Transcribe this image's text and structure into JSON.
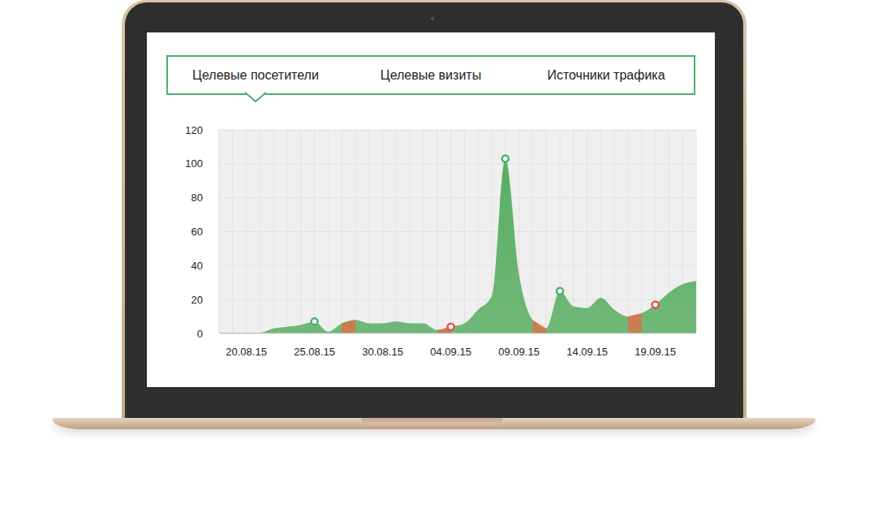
{
  "tabs": [
    "Целевые посетители",
    "Целевые визиты",
    "Источники трафика"
  ],
  "chart_data": {
    "type": "area",
    "categories": [
      null,
      null,
      "20.08.15",
      null,
      null,
      null,
      null,
      "25.08.15",
      null,
      null,
      null,
      null,
      "30.08.15",
      null,
      null,
      null,
      null,
      "04.09.15",
      null,
      null,
      null,
      null,
      "09.09.15",
      null,
      null,
      null,
      null,
      "14.09.15",
      null,
      null,
      null,
      null,
      "19.09.15",
      null,
      null,
      null
    ],
    "series": [
      {
        "type": "area",
        "color": "#5aae63",
        "values": [
          0.5,
          0.5,
          0.5,
          0.5,
          3,
          4,
          5,
          7,
          1,
          6,
          8,
          6,
          6,
          7,
          6,
          6,
          2,
          4,
          6,
          14,
          22,
          103,
          35,
          8,
          3,
          25,
          16,
          15,
          21,
          14,
          10,
          12,
          17,
          24,
          29,
          31
        ]
      },
      {
        "type": "area",
        "color": "#d2784c",
        "values": [
          null,
          null,
          null,
          null,
          null,
          null,
          null,
          null,
          null,
          6,
          8,
          null,
          null,
          null,
          null,
          null,
          2,
          4,
          null,
          null,
          null,
          null,
          null,
          8,
          3,
          null,
          null,
          null,
          null,
          null,
          10,
          12,
          null,
          null,
          null,
          null
        ]
      },
      {
        "type": "scatter",
        "color": "#4cb06c",
        "marker": "circle",
        "values": [
          null,
          null,
          null,
          null,
          null,
          null,
          null,
          7,
          null,
          null,
          null,
          null,
          null,
          null,
          null,
          null,
          null,
          null,
          null,
          null,
          null,
          103,
          null,
          null,
          null,
          25,
          null,
          null,
          null,
          null,
          null,
          null,
          null,
          null,
          null,
          null
        ]
      },
      {
        "type": "scatter",
        "color": "#e8534a",
        "marker": "circle",
        "values": [
          null,
          null,
          null,
          null,
          null,
          null,
          null,
          null,
          null,
          null,
          null,
          null,
          null,
          null,
          null,
          null,
          null,
          4,
          null,
          null,
          null,
          null,
          null,
          null,
          null,
          null,
          null,
          null,
          null,
          null,
          null,
          null,
          17,
          null,
          null,
          null
        ]
      }
    ],
    "ylim": [
      0,
      120
    ],
    "yticks": [
      0,
      20,
      40,
      60,
      80,
      100,
      120
    ],
    "grid": true
  }
}
